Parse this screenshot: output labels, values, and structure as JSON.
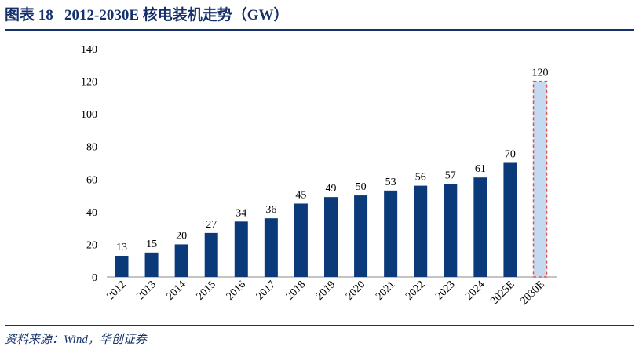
{
  "title": "图表 18   2012-2030E 核电装机走势（GW）",
  "source": "资料来源：Wind，华创证券",
  "colors": {
    "bar": "#0b3a7a",
    "projection_fill": "#c5d9f1",
    "projection_border": "#d9534f",
    "title": "#15306b"
  },
  "chart_data": {
    "type": "bar",
    "categories": [
      "2012",
      "2013",
      "2014",
      "2015",
      "2016",
      "2017",
      "2018",
      "2019",
      "2020",
      "2021",
      "2022",
      "2023",
      "2024",
      "2025E",
      "2030E"
    ],
    "values": [
      13,
      15,
      20,
      27,
      34,
      36,
      45,
      49,
      50,
      53,
      56,
      57,
      61,
      70,
      120
    ],
    "data_labels": [
      "13",
      "15",
      "20",
      "27",
      "34",
      "36",
      "45",
      "49",
      "50",
      "53",
      "56",
      "57",
      "61",
      "70",
      "120"
    ],
    "ylim": [
      0,
      140
    ],
    "yticks": [
      "0",
      "20",
      "40",
      "60",
      "80",
      "100",
      "120",
      "140"
    ],
    "grid": false,
    "legend": "none",
    "xlabel": "",
    "ylabel": ""
  }
}
